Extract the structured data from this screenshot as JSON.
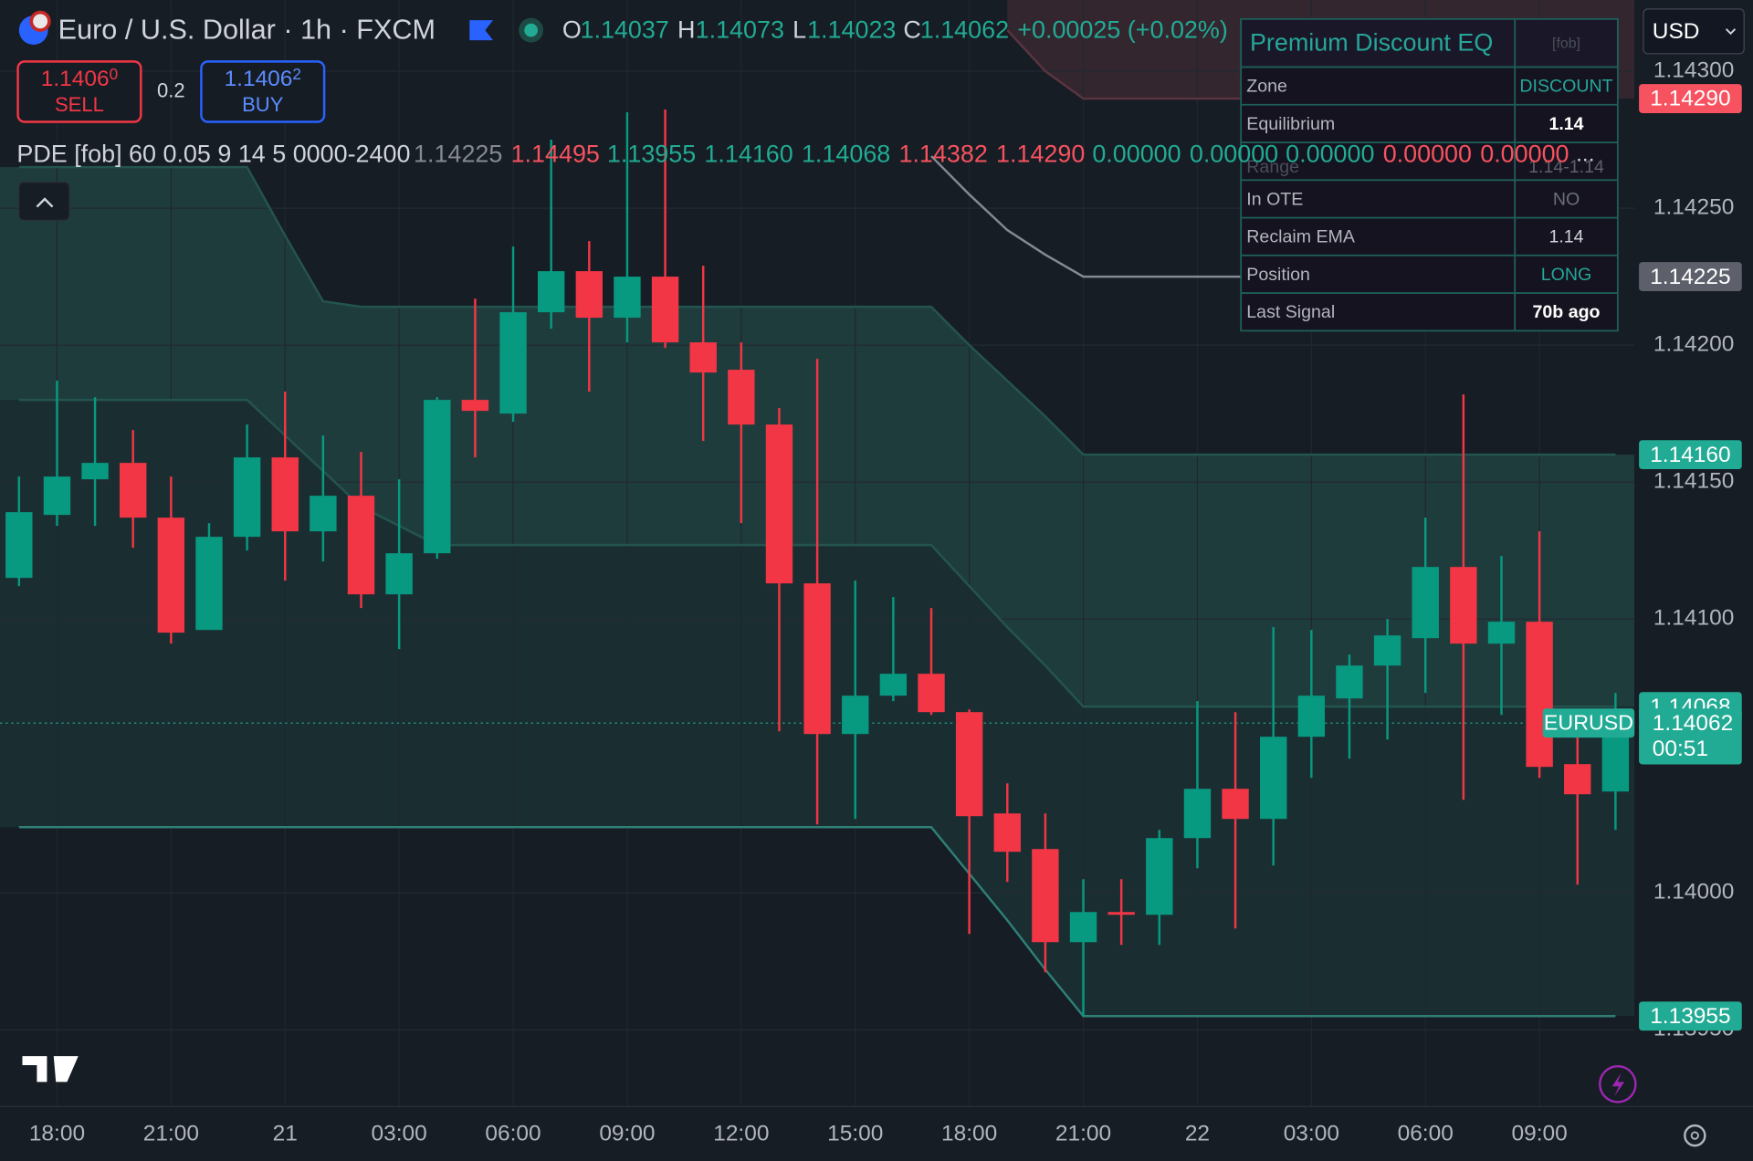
{
  "header": {
    "symbol": "Euro / U.S. Dollar · 1h · FXCM",
    "ohlc": [
      {
        "key": "O",
        "value": "1.14037"
      },
      {
        "key": "H",
        "value": "1.14073"
      },
      {
        "key": "L",
        "value": "1.14023"
      },
      {
        "key": "C",
        "value": "1.14062"
      }
    ],
    "change": "+0.00025 (+0.02%)"
  },
  "trade": {
    "sell": {
      "price": "1.1406",
      "pip": "0",
      "label": "SELL"
    },
    "spread": "0.2",
    "buy": {
      "price": "1.1406",
      "pip": "2",
      "label": "BUY"
    }
  },
  "currency": "USD",
  "indicator": {
    "label": "PDE [fob] 60 0.05 9 14 5 0000-2400",
    "values": [
      {
        "text": "1.14225",
        "color": "#868993"
      },
      {
        "text": "1.14495",
        "color": "#f7525f"
      },
      {
        "text": "1.13955",
        "color": "#22ab94"
      },
      {
        "text": "1.14160",
        "color": "#22ab94"
      },
      {
        "text": "1.14068",
        "color": "#22ab94"
      },
      {
        "text": "1.14382",
        "color": "#f7525f"
      },
      {
        "text": "1.14290",
        "color": "#f7525f"
      },
      {
        "text": "0.00000",
        "color": "#22ab94"
      },
      {
        "text": "0.00000",
        "color": "#22ab94"
      },
      {
        "text": "0.00000",
        "color": "#22ab94"
      },
      {
        "text": "0.00000",
        "color": "#f7525f"
      },
      {
        "text": "0.00000",
        "color": "#f7525f"
      }
    ],
    "more": "..."
  },
  "table": {
    "title": "Premium Discount EQ",
    "tag": "[fob]",
    "rows": [
      [
        "Zone",
        "DISCOUNT"
      ],
      [
        "Equilibrium",
        "1.14"
      ],
      [
        "Range",
        "1.14-1.14"
      ],
      [
        "In OTE",
        "NO"
      ],
      [
        "Reclaim EMA",
        "1.14"
      ],
      [
        "Position",
        "LONG"
      ],
      [
        "Last Signal",
        "70b ago"
      ]
    ],
    "value_colors": [
      "#26a69a",
      "#ffffff",
      "#5d606b",
      "#6b6f7a",
      "#d1d4dc",
      "#26a69a",
      "#ffffff"
    ]
  },
  "chart_data": {
    "type": "candlestick",
    "up_color": "#089981",
    "down_color": "#f23645",
    "x": [
      null,
      "18:00",
      null,
      null,
      "21:00",
      null,
      null,
      "21",
      null,
      null,
      "03:00",
      null,
      null,
      "06:00",
      null,
      null,
      "09:00",
      null,
      null,
      "12:00",
      null,
      null,
      "15:00",
      null,
      null,
      "18:00",
      null,
      null,
      "21:00",
      null,
      null,
      "22",
      null,
      null,
      "03:00",
      null,
      null,
      "06:00",
      null,
      null,
      "09:00",
      null,
      null
    ],
    "open": [
      1.14115,
      1.14138,
      1.14151,
      1.14157,
      1.14137,
      1.14096,
      1.1413,
      1.14159,
      1.14132,
      1.14145,
      1.14109,
      1.14124,
      1.1418,
      1.14175,
      1.14212,
      1.14227,
      1.1421,
      1.14225,
      1.14201,
      1.14191,
      1.14171,
      1.14113,
      1.14058,
      1.14072,
      1.1408,
      1.14066,
      1.14029,
      1.14016,
      1.13982,
      1.13993,
      1.13992,
      1.1402,
      1.14038,
      1.14027,
      1.14057,
      1.14071,
      1.14083,
      1.14093,
      1.14119,
      1.14091,
      1.14099,
      1.14047,
      1.14037
    ],
    "high": [
      1.14152,
      1.14187,
      1.14181,
      1.14169,
      1.14152,
      1.14135,
      1.14171,
      1.14183,
      1.14167,
      1.14161,
      1.14151,
      1.14181,
      1.14217,
      1.14236,
      1.14275,
      1.14238,
      1.14285,
      1.14286,
      1.14229,
      1.14201,
      1.14177,
      1.14195,
      1.14114,
      1.14108,
      1.14104,
      1.14067,
      1.1404,
      1.14029,
      1.14005,
      1.14005,
      1.14023,
      1.1407,
      1.14066,
      1.14097,
      1.14096,
      1.14087,
      1.141,
      1.14137,
      1.14182,
      1.14123,
      1.14132,
      1.14059,
      1.14073
    ],
    "low": [
      1.14112,
      1.14134,
      1.14134,
      1.14126,
      1.14091,
      1.14096,
      1.14125,
      1.14114,
      1.14121,
      1.14104,
      1.14089,
      1.14122,
      1.14159,
      1.14172,
      1.14206,
      1.14183,
      1.14201,
      1.14199,
      1.14165,
      1.14135,
      1.14059,
      1.14025,
      1.14027,
      1.1407,
      1.14065,
      1.13985,
      1.14004,
      1.13971,
      1.13955,
      1.13981,
      1.13981,
      1.14009,
      1.13987,
      1.1401,
      1.14042,
      1.14049,
      1.14056,
      1.14073,
      1.14034,
      1.14065,
      1.14042,
      1.14003,
      1.14023
    ],
    "close": [
      1.14139,
      1.14152,
      1.14157,
      1.14137,
      1.14095,
      1.1413,
      1.14159,
      1.14132,
      1.14145,
      1.14109,
      1.14124,
      1.1418,
      1.14176,
      1.14212,
      1.14227,
      1.1421,
      1.14225,
      1.14201,
      1.1419,
      1.14171,
      1.14113,
      1.14058,
      1.14072,
      1.1408,
      1.14066,
      1.14028,
      1.14015,
      1.13982,
      1.13993,
      1.13992,
      1.1402,
      1.14038,
      1.14027,
      1.14057,
      1.14072,
      1.14083,
      1.14094,
      1.14119,
      1.14091,
      1.14099,
      1.14046,
      1.14036,
      1.14062
    ],
    "lines": [
      {
        "color": "#5a3440",
        "values": [
          null,
          null,
          null,
          null,
          null,
          null,
          null,
          null,
          null,
          null,
          null,
          null,
          null,
          null,
          null,
          null,
          null,
          null,
          null,
          null,
          null,
          null,
          null,
          null,
          null,
          null,
          1.14315,
          1.143,
          1.1429,
          1.1429,
          1.1429,
          1.1429,
          1.1429,
          1.1429,
          1.1429,
          1.1429,
          1.1429,
          1.1429,
          1.1429,
          1.1429,
          1.1429,
          1.1429,
          1.1429
        ]
      },
      {
        "color": "#868993",
        "values": [
          null,
          null,
          null,
          null,
          null,
          null,
          null,
          null,
          null,
          null,
          null,
          null,
          null,
          null,
          null,
          null,
          null,
          null,
          null,
          null,
          null,
          null,
          null,
          null,
          1.14269,
          1.14255,
          1.14242,
          1.14233,
          1.14225,
          1.14225,
          1.14225,
          1.14225,
          1.14225,
          1.14225,
          1.14225,
          1.14225,
          1.14225,
          1.14225,
          1.14225,
          1.14225,
          1.14225,
          1.14225,
          1.14225
        ]
      },
      {
        "color": "#24544f",
        "values": [
          1.14265,
          1.14265,
          1.14265,
          1.14265,
          1.14265,
          1.14265,
          1.14265,
          1.1424,
          1.14216,
          1.14214,
          1.14214,
          1.14214,
          1.14214,
          1.14214,
          1.14214,
          1.14214,
          1.14214,
          1.14214,
          1.14214,
          1.14214,
          1.14214,
          1.14214,
          1.14214,
          1.14214,
          1.14214,
          1.142,
          1.14187,
          1.14174,
          1.1416,
          1.1416,
          1.1416,
          1.1416,
          1.1416,
          1.1416,
          1.1416,
          1.1416,
          1.1416,
          1.1416,
          1.1416,
          1.1416,
          1.1416,
          1.1416,
          1.1416
        ]
      },
      {
        "color": "#24544f",
        "values": [
          1.1418,
          1.1418,
          1.1418,
          1.1418,
          1.1418,
          1.1418,
          1.1418,
          1.14167,
          1.14154,
          1.14141,
          1.14134,
          1.14127,
          1.14127,
          1.14127,
          1.14127,
          1.14127,
          1.14127,
          1.14127,
          1.14127,
          1.14127,
          1.14127,
          1.14127,
          1.14127,
          1.14127,
          1.14127,
          1.14112,
          1.14097,
          1.14083,
          1.14068,
          1.14068,
          1.14068,
          1.14068,
          1.14068,
          1.14068,
          1.14068,
          1.14068,
          1.14068,
          1.14068,
          1.14068,
          1.14068,
          1.14068,
          1.14068,
          1.14068
        ]
      },
      {
        "color": "#2f7f76",
        "values": [
          1.14024,
          1.14024,
          1.14024,
          1.14024,
          1.14024,
          1.14024,
          1.14024,
          1.14024,
          1.14024,
          1.14024,
          1.14024,
          1.14024,
          1.14024,
          1.14024,
          1.14024,
          1.14024,
          1.14024,
          1.14024,
          1.14024,
          1.14024,
          1.14024,
          1.14024,
          1.14024,
          1.14024,
          1.14024,
          1.14007,
          1.1399,
          1.13972,
          1.13955,
          1.13955,
          1.13955,
          1.13955,
          1.13955,
          1.13955,
          1.13955,
          1.13955,
          1.13955,
          1.13955,
          1.13955,
          1.13955,
          1.13955,
          1.13955,
          1.13955
        ]
      }
    ],
    "fills": [
      {
        "lines": [
          0
        ],
        "color": "#33262f"
      },
      {
        "lines": [
          2,
          3
        ],
        "color": "#1f3c3d"
      },
      {
        "lines": [
          3,
          4
        ],
        "color": "#1a2e32"
      }
    ],
    "ylim": [
      1.13922,
      1.14326
    ],
    "yticks": [
      {
        "value": 1.143,
        "label": "1.14300"
      },
      {
        "value": 1.1425,
        "label": "1.14250"
      },
      {
        "value": 1.142,
        "label": "1.14200"
      },
      {
        "value": 1.1415,
        "label": "1.14150"
      },
      {
        "value": 1.141,
        "label": "1.14100"
      },
      {
        "value": 1.14,
        "label": "1.14000"
      },
      {
        "value": 1.1395,
        "label": "1.13950"
      }
    ],
    "grid": true,
    "price_labels": [
      {
        "value": 1.1429,
        "label": "1.14290",
        "color": "#f7525f"
      },
      {
        "value": 1.14225,
        "label": "1.14225",
        "color": "#5d606b"
      },
      {
        "value": 1.1416,
        "label": "1.14160",
        "color": "#22ab94"
      },
      {
        "value": 1.14068,
        "label": "1.14068",
        "color": "#22ab94"
      },
      {
        "value": 1.13955,
        "label": "1.13955",
        "color": "#22ab94"
      },
      {
        "value": 1.14062,
        "label": "1.14062",
        "color": "#22ab94",
        "symbol": "EURUSD",
        "countdown": "00:51"
      }
    ]
  }
}
